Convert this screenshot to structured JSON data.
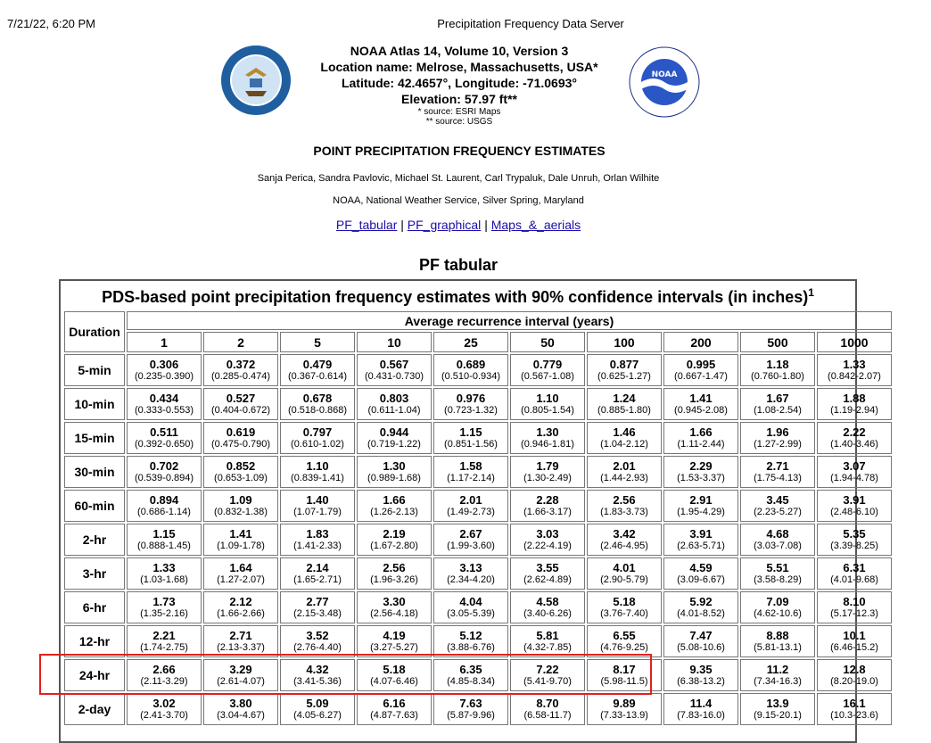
{
  "header": {
    "timestamp": "7/21/22, 6:20 PM",
    "title": "Precipitation Frequency Data Server"
  },
  "location": {
    "atlas": "NOAA Atlas 14, Volume 10, Version 3",
    "name": "Location name: Melrose, Massachusetts, USA*",
    "latlon": "Latitude: 42.4657°, Longitude: -71.0693°",
    "elevation": "Elevation: 57.97 ft**",
    "source1": "* source: ESRI Maps",
    "source2": "** source: USGS"
  },
  "section_title": "POINT PRECIPITATION FREQUENCY ESTIMATES",
  "authors": "Sanja Perica, Sandra Pavlovic, Michael St. Laurent, Carl Trypaluk, Dale Unruh, Orlan Wilhite",
  "agency": "NOAA, National Weather Service, Silver Spring, Maryland",
  "links": [
    "PF_tabular",
    "PF_graphical",
    "Maps_&_aerials"
  ],
  "link_separator": "|",
  "pf_tabular_heading": "PF tabular",
  "table": {
    "title": "PDS-based point precipitation frequency estimates with 90% confidence intervals (in inches)",
    "title_sup": "1",
    "duration_header": "Duration",
    "ari_header": "Average recurrence interval (years)",
    "years": [
      "1",
      "2",
      "5",
      "10",
      "25",
      "50",
      "100",
      "200",
      "500",
      "1000"
    ],
    "rows": [
      {
        "duration": "5-min",
        "values": [
          "0.306",
          "0.372",
          "0.479",
          "0.567",
          "0.689",
          "0.779",
          "0.877",
          "0.995",
          "1.18",
          "1.33"
        ],
        "ci": [
          "(0.235-0.390)",
          "(0.285-0.474)",
          "(0.367-0.614)",
          "(0.431-0.730)",
          "(0.510-0.934)",
          "(0.567-1.08)",
          "(0.625-1.27)",
          "(0.667-1.47)",
          "(0.760-1.80)",
          "(0.842-2.07)"
        ]
      },
      {
        "duration": "10-min",
        "values": [
          "0.434",
          "0.527",
          "0.678",
          "0.803",
          "0.976",
          "1.10",
          "1.24",
          "1.41",
          "1.67",
          "1.88"
        ],
        "ci": [
          "(0.333-0.553)",
          "(0.404-0.672)",
          "(0.518-0.868)",
          "(0.611-1.04)",
          "(0.723-1.32)",
          "(0.805-1.54)",
          "(0.885-1.80)",
          "(0.945-2.08)",
          "(1.08-2.54)",
          "(1.19-2.94)"
        ]
      },
      {
        "duration": "15-min",
        "values": [
          "0.511",
          "0.619",
          "0.797",
          "0.944",
          "1.15",
          "1.30",
          "1.46",
          "1.66",
          "1.96",
          "2.22"
        ],
        "ci": [
          "(0.392-0.650)",
          "(0.475-0.790)",
          "(0.610-1.02)",
          "(0.719-1.22)",
          "(0.851-1.56)",
          "(0.946-1.81)",
          "(1.04-2.12)",
          "(1.11-2.44)",
          "(1.27-2.99)",
          "(1.40-3.46)"
        ]
      },
      {
        "duration": "30-min",
        "values": [
          "0.702",
          "0.852",
          "1.10",
          "1.30",
          "1.58",
          "1.79",
          "2.01",
          "2.29",
          "2.71",
          "3.07"
        ],
        "ci": [
          "(0.539-0.894)",
          "(0.653-1.09)",
          "(0.839-1.41)",
          "(0.989-1.68)",
          "(1.17-2.14)",
          "(1.30-2.49)",
          "(1.44-2.93)",
          "(1.53-3.37)",
          "(1.75-4.13)",
          "(1.94-4.78)"
        ]
      },
      {
        "duration": "60-min",
        "values": [
          "0.894",
          "1.09",
          "1.40",
          "1.66",
          "2.01",
          "2.28",
          "2.56",
          "2.91",
          "3.45",
          "3.91"
        ],
        "ci": [
          "(0.686-1.14)",
          "(0.832-1.38)",
          "(1.07-1.79)",
          "(1.26-2.13)",
          "(1.49-2.73)",
          "(1.66-3.17)",
          "(1.83-3.73)",
          "(1.95-4.29)",
          "(2.23-5.27)",
          "(2.48-6.10)"
        ]
      },
      {
        "duration": "2-hr",
        "values": [
          "1.15",
          "1.41",
          "1.83",
          "2.19",
          "2.67",
          "3.03",
          "3.42",
          "3.91",
          "4.68",
          "5.35"
        ],
        "ci": [
          "(0.888-1.45)",
          "(1.09-1.78)",
          "(1.41-2.33)",
          "(1.67-2.80)",
          "(1.99-3.60)",
          "(2.22-4.19)",
          "(2.46-4.95)",
          "(2.63-5.71)",
          "(3.03-7.08)",
          "(3.39-8.25)"
        ]
      },
      {
        "duration": "3-hr",
        "values": [
          "1.33",
          "1.64",
          "2.14",
          "2.56",
          "3.13",
          "3.55",
          "4.01",
          "4.59",
          "5.51",
          "6.31"
        ],
        "ci": [
          "(1.03-1.68)",
          "(1.27-2.07)",
          "(1.65-2.71)",
          "(1.96-3.26)",
          "(2.34-4.20)",
          "(2.62-4.89)",
          "(2.90-5.79)",
          "(3.09-6.67)",
          "(3.58-8.29)",
          "(4.01-9.68)"
        ]
      },
      {
        "duration": "6-hr",
        "values": [
          "1.73",
          "2.12",
          "2.77",
          "3.30",
          "4.04",
          "4.58",
          "5.18",
          "5.92",
          "7.09",
          "8.10"
        ],
        "ci": [
          "(1.35-2.16)",
          "(1.66-2.66)",
          "(2.15-3.48)",
          "(2.56-4.18)",
          "(3.05-5.39)",
          "(3.40-6.26)",
          "(3.76-7.40)",
          "(4.01-8.52)",
          "(4.62-10.6)",
          "(5.17-12.3)"
        ]
      },
      {
        "duration": "12-hr",
        "values": [
          "2.21",
          "2.71",
          "3.52",
          "4.19",
          "5.12",
          "5.81",
          "6.55",
          "7.47",
          "8.88",
          "10.1"
        ],
        "ci": [
          "(1.74-2.75)",
          "(2.13-3.37)",
          "(2.76-4.40)",
          "(3.27-5.27)",
          "(3.88-6.76)",
          "(4.32-7.85)",
          "(4.76-9.25)",
          "(5.08-10.6)",
          "(5.81-13.1)",
          "(6.46-15.2)"
        ]
      },
      {
        "duration": "24-hr",
        "values": [
          "2.66",
          "3.29",
          "4.32",
          "5.18",
          "6.35",
          "7.22",
          "8.17",
          "9.35",
          "11.2",
          "12.8"
        ],
        "ci": [
          "(2.11-3.29)",
          "(2.61-4.07)",
          "(3.41-5.36)",
          "(4.07-6.46)",
          "(4.85-8.34)",
          "(5.41-9.70)",
          "(5.98-11.5)",
          "(6.38-13.2)",
          "(7.34-16.3)",
          "(8.20-19.0)"
        ]
      },
      {
        "duration": "2-day",
        "values": [
          "3.02",
          "3.80",
          "5.09",
          "6.16",
          "7.63",
          "8.70",
          "9.89",
          "11.4",
          "13.9",
          "16.1"
        ],
        "ci": [
          "(2.41-3.70)",
          "(3.04-4.67)",
          "(4.05-6.27)",
          "(4.87-7.63)",
          "(5.87-9.96)",
          "(6.58-11.7)",
          "(7.33-13.9)",
          "(7.83-16.0)",
          "(9.15-20.1)",
          "(10.3-23.6)"
        ]
      }
    ]
  },
  "colors": {
    "link": "#1a0dab",
    "highlight": "#e02020",
    "border": "#777777"
  },
  "icons": [
    "commerce-seal-icon",
    "noaa-logo-icon"
  ]
}
